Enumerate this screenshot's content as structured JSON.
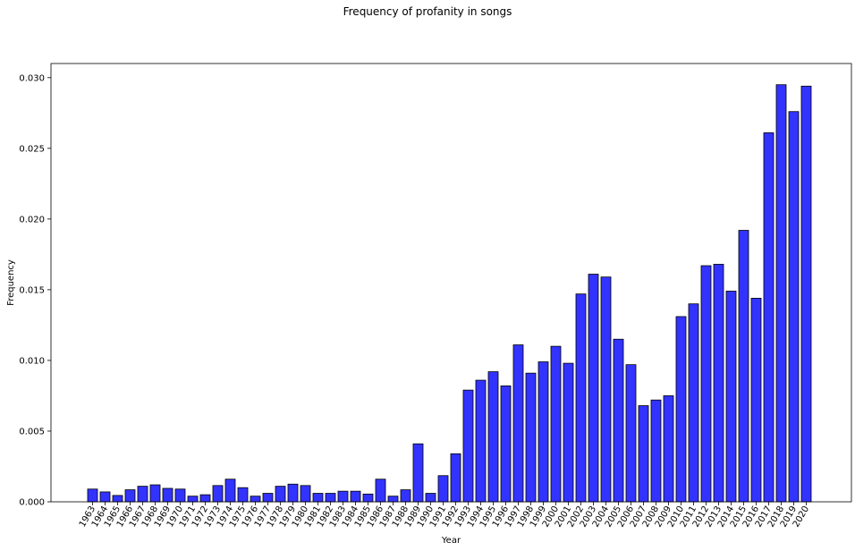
{
  "chart_data": {
    "type": "bar",
    "title": "Frequency of profanity in songs",
    "xlabel": "Year",
    "ylabel": "Frequency",
    "ylim": [
      0,
      0.031
    ],
    "yticks": [
      "0.000",
      "0.005",
      "0.010",
      "0.015",
      "0.020",
      "0.025",
      "0.030"
    ],
    "grid": false,
    "bar_color": "#3333ff",
    "edge_color": "#000000",
    "categories": [
      "1963",
      "1964",
      "1965",
      "1966",
      "1967",
      "1968",
      "1969",
      "1970",
      "1971",
      "1972",
      "1973",
      "1974",
      "1975",
      "1976",
      "1977",
      "1978",
      "1979",
      "1980",
      "1981",
      "1982",
      "1983",
      "1984",
      "1985",
      "1986",
      "1987",
      "1988",
      "1989",
      "1990",
      "1991",
      "1992",
      "1993",
      "1994",
      "1995",
      "1996",
      "1997",
      "1998",
      "1999",
      "2000",
      "2001",
      "2002",
      "2003",
      "2004",
      "2005",
      "2006",
      "2007",
      "2008",
      "2009",
      "2010",
      "2011",
      "2012",
      "2013",
      "2014",
      "2015",
      "2016",
      "2017",
      "2018",
      "2019",
      "2020"
    ],
    "values": [
      0.0009,
      0.0007,
      0.00045,
      0.00085,
      0.0011,
      0.0012,
      0.00095,
      0.0009,
      0.0004,
      0.0005,
      0.00115,
      0.0016,
      0.001,
      0.0004,
      0.0006,
      0.0011,
      0.00125,
      0.00115,
      0.0006,
      0.0006,
      0.00075,
      0.00075,
      0.00055,
      0.0016,
      0.0004,
      0.00085,
      0.0041,
      0.0006,
      0.00185,
      0.0034,
      0.0079,
      0.0086,
      0.0092,
      0.0082,
      0.0111,
      0.0091,
      0.0099,
      0.011,
      0.0098,
      0.0147,
      0.0161,
      0.0159,
      0.0115,
      0.0097,
      0.0068,
      0.0072,
      0.0075,
      0.0131,
      0.014,
      0.0167,
      0.0168,
      0.0149,
      0.0192,
      0.0144,
      0.0261,
      0.0295,
      0.0276,
      0.0294
    ]
  }
}
